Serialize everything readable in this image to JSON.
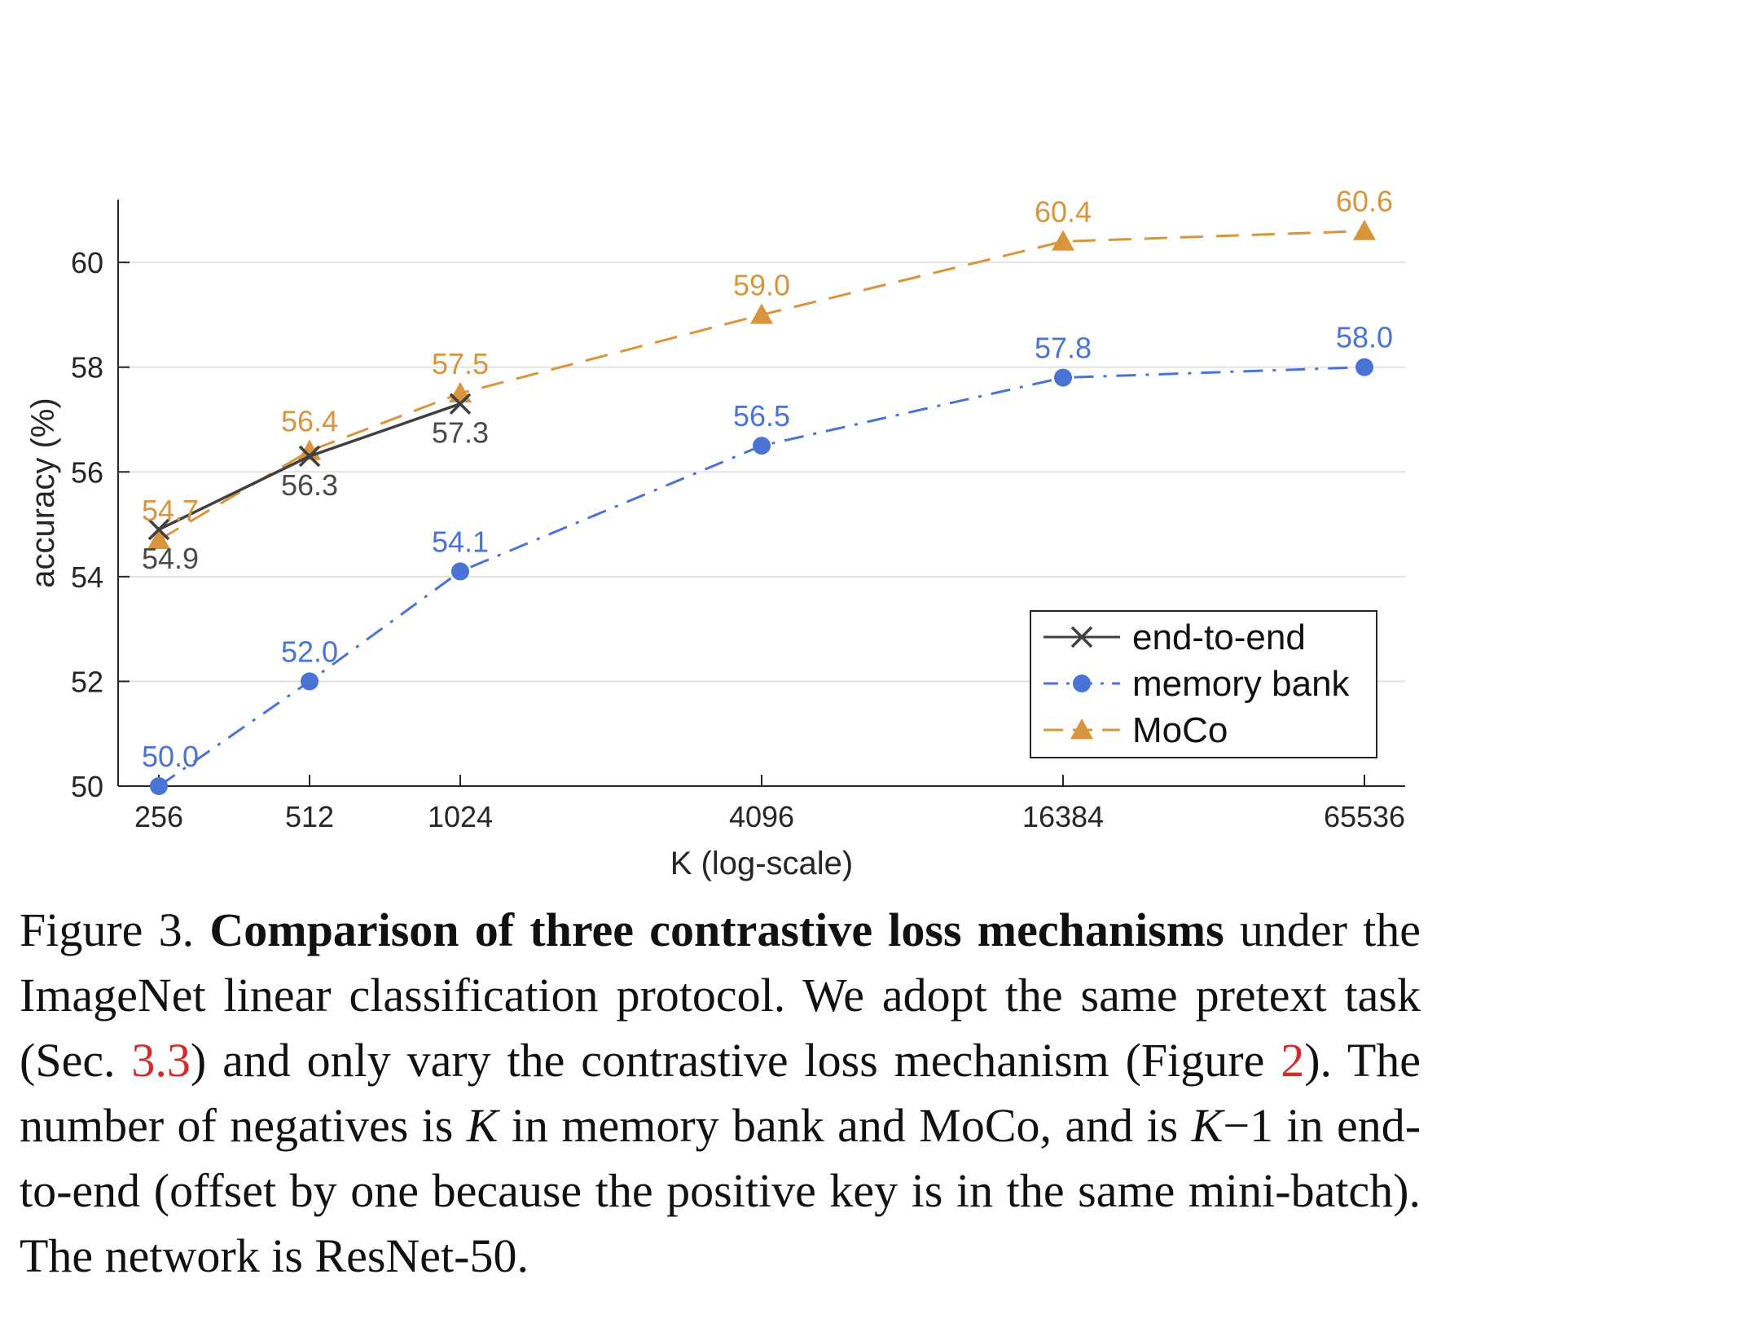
{
  "chart_data": {
    "type": "line",
    "title": "",
    "xlabel": "K (log-scale)",
    "ylabel": "accuracy (%)",
    "xscale": "log",
    "x_ticks": [
      "256",
      "512",
      "1024",
      "4096",
      "16384",
      "65536"
    ],
    "x_tick_values": [
      256,
      512,
      1024,
      4096,
      16384,
      65536
    ],
    "y_ticks": [
      "50",
      "52",
      "54",
      "56",
      "58",
      "60"
    ],
    "y_tick_values": [
      50,
      52,
      54,
      56,
      58,
      60
    ],
    "ylim": [
      50,
      61.2
    ],
    "grid": "horizontal",
    "legend_position": "bottom-right",
    "series": [
      {
        "name": "end-to-end",
        "color": "#404040",
        "marker": "x",
        "linestyle": "solid",
        "x": [
          256,
          512,
          1024
        ],
        "values": [
          54.9,
          56.3,
          57.3
        ],
        "labels": [
          "54.9",
          "56.3",
          "57.3"
        ],
        "label_position": "below"
      },
      {
        "name": "memory bank",
        "color": "#4a73d6",
        "marker": "circle",
        "linestyle": "dashdot",
        "x": [
          256,
          512,
          1024,
          4096,
          16384,
          65536
        ],
        "values": [
          50.0,
          52.0,
          54.1,
          56.5,
          57.8,
          58.0
        ],
        "labels": [
          "50.0",
          "52.0",
          "54.1",
          "56.5",
          "57.8",
          "58.0"
        ],
        "label_position": "above"
      },
      {
        "name": "MoCo",
        "color": "#d9953e",
        "marker": "triangle",
        "linestyle": "dashed",
        "x": [
          256,
          512,
          1024,
          4096,
          16384,
          65536
        ],
        "values": [
          54.7,
          56.4,
          57.5,
          59.0,
          60.4,
          60.6
        ],
        "labels": [
          "54.7",
          "56.4",
          "57.5",
          "59.0",
          "60.4",
          "60.6"
        ],
        "label_position": "above"
      }
    ]
  },
  "caption": {
    "prefix": "Figure 3.",
    "bold": "Comparison of three contrastive loss mechanisms",
    "part1": "under the ImageNet linear classification protocol. We adopt the same pretext task (Sec.",
    "ref1": "3.3",
    "part2": ") and only vary the contrastive loss mechanism (Figure",
    "ref2": "2",
    "part3": "). The number of negatives is",
    "k1": "K",
    "part4": "in memory bank and MoCo, and is",
    "k2": "K",
    "minus_one": "−1",
    "part5": "in end-to-end (offset by one because the positive key is in the same mini-batch). The network is ResNet-50."
  }
}
